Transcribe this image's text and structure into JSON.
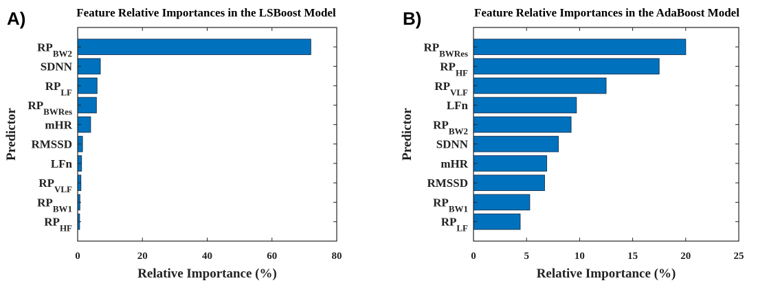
{
  "chart_data": [
    {
      "type": "barh",
      "panel_label": "A)",
      "title": "Feature Relative Importances in the LSBoost Model",
      "x_label": "Relative Importance (%)",
      "y_label": "Predictor",
      "categories": [
        {
          "text": "RP",
          "sub": "BW2"
        },
        {
          "text": "SDNN"
        },
        {
          "text": "RP",
          "sub": "LF"
        },
        {
          "text": "RP",
          "sub": "BWRes"
        },
        {
          "text": "mHR"
        },
        {
          "text": "RMSSD"
        },
        {
          "text": "LFn"
        },
        {
          "text": "RP",
          "sub": "VLF"
        },
        {
          "text": "RP",
          "sub": "BW1"
        },
        {
          "text": "RP",
          "sub": "HF"
        }
      ],
      "values": [
        72,
        7,
        6,
        5.8,
        4,
        1.5,
        1.2,
        1,
        0.7,
        0.6
      ],
      "color": "#0072bd",
      "xlim": [
        0,
        80
      ],
      "xticks": [
        0,
        20,
        40,
        60,
        80
      ]
    },
    {
      "type": "barh",
      "panel_label": "B)",
      "title": "Feature Relative Importances in the AdaBoost Model",
      "x_label": "Relative Importance (%)",
      "y_label": "Predictor",
      "categories": [
        {
          "text": "RP",
          "sub": "BWRes"
        },
        {
          "text": "RP",
          "sub": "HF"
        },
        {
          "text": "RP",
          "sub": "VLF"
        },
        {
          "text": "LFn"
        },
        {
          "text": "RP",
          "sub": "BW2"
        },
        {
          "text": "SDNN"
        },
        {
          "text": "mHR"
        },
        {
          "text": "RMSSD"
        },
        {
          "text": "RP",
          "sub": "BW1"
        },
        {
          "text": "RP",
          "sub": "LF"
        }
      ],
      "values": [
        20,
        17.5,
        12.5,
        9.7,
        9.2,
        8,
        6.9,
        6.7,
        5.3,
        4.4
      ],
      "color": "#0072bd",
      "xlim": [
        0,
        25
      ],
      "xticks": [
        0,
        5,
        10,
        15,
        20,
        25
      ]
    }
  ]
}
